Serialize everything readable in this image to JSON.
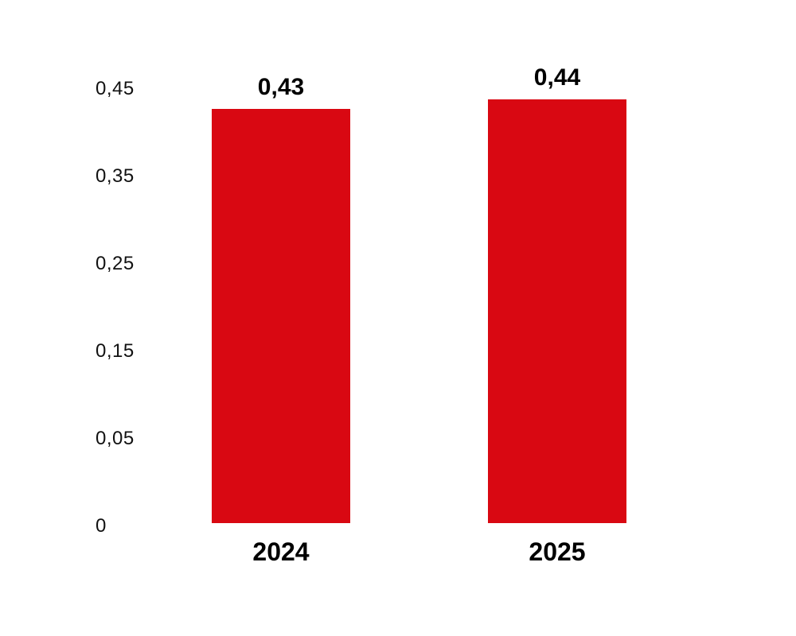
{
  "chart_data": {
    "type": "bar",
    "categories": [
      "2024",
      "2025"
    ],
    "values": [
      0.43,
      0.44
    ],
    "value_labels": [
      "0,43",
      "0,44"
    ],
    "y_ticks": [
      "0,45",
      "0,35",
      "0,25",
      "0,15",
      "0,05",
      "0"
    ],
    "title": "",
    "xlabel": "",
    "ylabel": "",
    "ylim": [
      0,
      0.45
    ],
    "grid": false,
    "legend": false,
    "bar_color": "#D90812",
    "label_color": "#000000",
    "tick_color": "#111111",
    "background_color": "#FFFFFF"
  }
}
